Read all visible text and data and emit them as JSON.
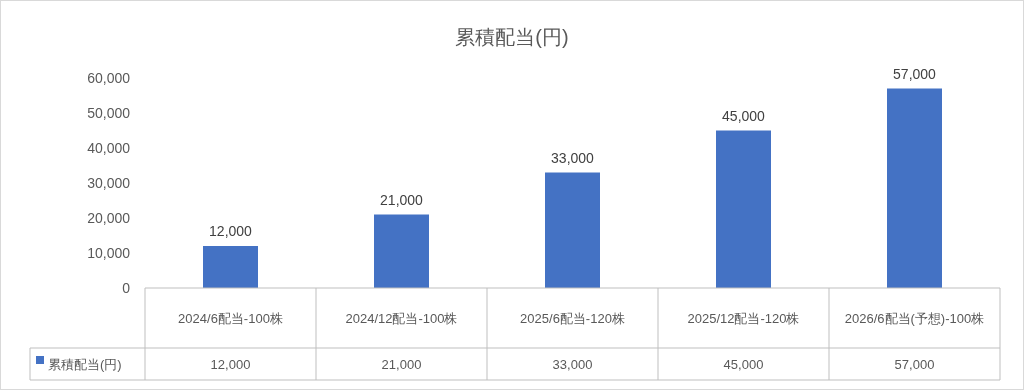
{
  "chart_data": {
    "type": "bar",
    "title": "累積配当(円)",
    "categories": [
      "2024/6配当-100株",
      "2024/12配当-100株",
      "2025/6配当-120株",
      "2025/12配当-120株",
      "2026/6配当(予想)-100株"
    ],
    "series": [
      {
        "name": "累積配当(円)",
        "color": "#4472c4",
        "values": [
          12000,
          21000,
          33000,
          45000,
          57000
        ],
        "value_labels": [
          "12,000",
          "21,000",
          "33,000",
          "45,000",
          "57,000"
        ]
      }
    ],
    "ylim": [
      0,
      60000
    ],
    "yticks": [
      0,
      {
        "value": 10000,
        "label": "10,000"
      },
      {
        "value": 20000,
        "label": "20,000"
      },
      {
        "value": 30000,
        "label": "30,000"
      },
      {
        "value": 40000,
        "label": "40,000"
      },
      {
        "value": 50000,
        "label": "50,000"
      },
      {
        "value": 60000,
        "label": "60,000"
      }
    ],
    "grid": false,
    "legend": "bottom"
  }
}
